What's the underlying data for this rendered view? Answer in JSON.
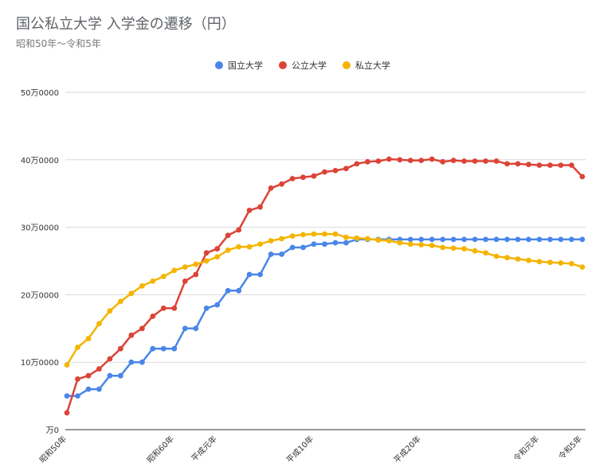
{
  "chart_data": {
    "type": "line",
    "title": "国公私立大学 入学金の遷移（円）",
    "subtitle": "昭和50年〜令和5年",
    "ylim": [
      0,
      500000
    ],
    "y_ticks": [
      0,
      100000,
      200000,
      300000,
      400000,
      500000
    ],
    "y_tick_labels": [
      "万0",
      "10万0000",
      "20万0000",
      "30万0000",
      "40万0000",
      "50万0000"
    ],
    "grid": true,
    "legend_placement": "top",
    "x": [
      "昭和50年",
      "昭和51年",
      "昭和52年",
      "昭和53年",
      "昭和54年",
      "昭和55年",
      "昭和56年",
      "昭和57年",
      "昭和58年",
      "昭和59年",
      "昭和60年",
      "昭和61年",
      "昭和62年",
      "昭和63年",
      "平成元年",
      "平成2年",
      "平成3年",
      "平成4年",
      "平成5年",
      "平成6年",
      "平成7年",
      "平成8年",
      "平成9年",
      "平成10年",
      "平成11年",
      "平成12年",
      "平成13年",
      "平成14年",
      "平成15年",
      "平成16年",
      "平成17年",
      "平成18年",
      "平成19年",
      "平成20年",
      "平成21年",
      "平成22年",
      "平成23年",
      "平成24年",
      "平成25年",
      "平成26年",
      "平成27年",
      "平成28年",
      "平成29年",
      "平成30年",
      "令和元年",
      "令和2年",
      "令和3年",
      "令和4年",
      "令和5年"
    ],
    "x_tick_labels": [
      {
        "index": 0,
        "label": "昭和50年"
      },
      {
        "index": 10,
        "label": "昭和60年"
      },
      {
        "index": 14,
        "label": "平成元年"
      },
      {
        "index": 23,
        "label": "平成10年"
      },
      {
        "index": 33,
        "label": "平成20年"
      },
      {
        "index": 44,
        "label": "令和元年"
      },
      {
        "index": 48,
        "label": "令和5年"
      }
    ],
    "series": [
      {
        "name": "国立大学",
        "color": "#4a86e8",
        "values": [
          50000,
          50000,
          60000,
          60000,
          80000,
          80000,
          100000,
          100000,
          120000,
          120000,
          120000,
          150000,
          150000,
          180000,
          185000,
          206000,
          206000,
          230000,
          230000,
          260000,
          260000,
          270000,
          270000,
          275000,
          275000,
          277000,
          277000,
          282000,
          282000,
          282000,
          282000,
          282000,
          282000,
          282000,
          282000,
          282000,
          282000,
          282000,
          282000,
          282000,
          282000,
          282000,
          282000,
          282000,
          282000,
          282000,
          282000,
          282000,
          282000
        ]
      },
      {
        "name": "公立大学",
        "color": "#db4437",
        "values": [
          25000,
          75000,
          80000,
          90000,
          105000,
          120000,
          140000,
          150000,
          168000,
          180000,
          180000,
          220000,
          230000,
          262000,
          268000,
          288000,
          296000,
          325000,
          330000,
          358000,
          364000,
          372000,
          374000,
          376000,
          382000,
          384000,
          387000,
          394000,
          397000,
          398000,
          401000,
          400000,
          399000,
          399000,
          401000,
          397000,
          399000,
          398000,
          398000,
          398000,
          398000,
          394000,
          394000,
          393000,
          392000,
          392000,
          392000,
          392000,
          375000
        ]
      },
      {
        "name": "私立大学",
        "color": "#f4b400",
        "values": [
          96000,
          122000,
          135000,
          157000,
          176000,
          190000,
          202000,
          213000,
          220000,
          227000,
          236000,
          241000,
          245000,
          250000,
          256000,
          266000,
          271000,
          271000,
          275000,
          280000,
          283000,
          287000,
          289000,
          290000,
          290000,
          290000,
          285000,
          284000,
          283000,
          281000,
          280000,
          277000,
          275000,
          274000,
          273000,
          270000,
          269000,
          268000,
          265000,
          262000,
          257000,
          255000,
          253000,
          251000,
          249000,
          248000,
          247000,
          246000,
          241000
        ]
      }
    ]
  }
}
